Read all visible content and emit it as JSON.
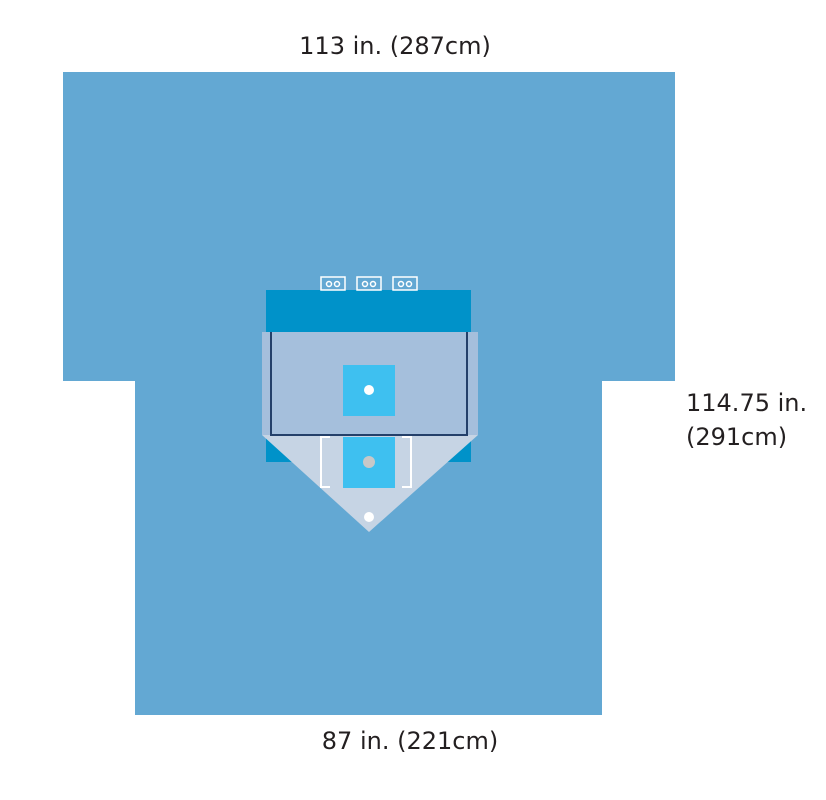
{
  "dimensions": {
    "top": "113 in. (287cm)",
    "right": [
      "114.75 in.",
      "(291cm)"
    ],
    "bottom": "87 in. (221cm)"
  }
}
